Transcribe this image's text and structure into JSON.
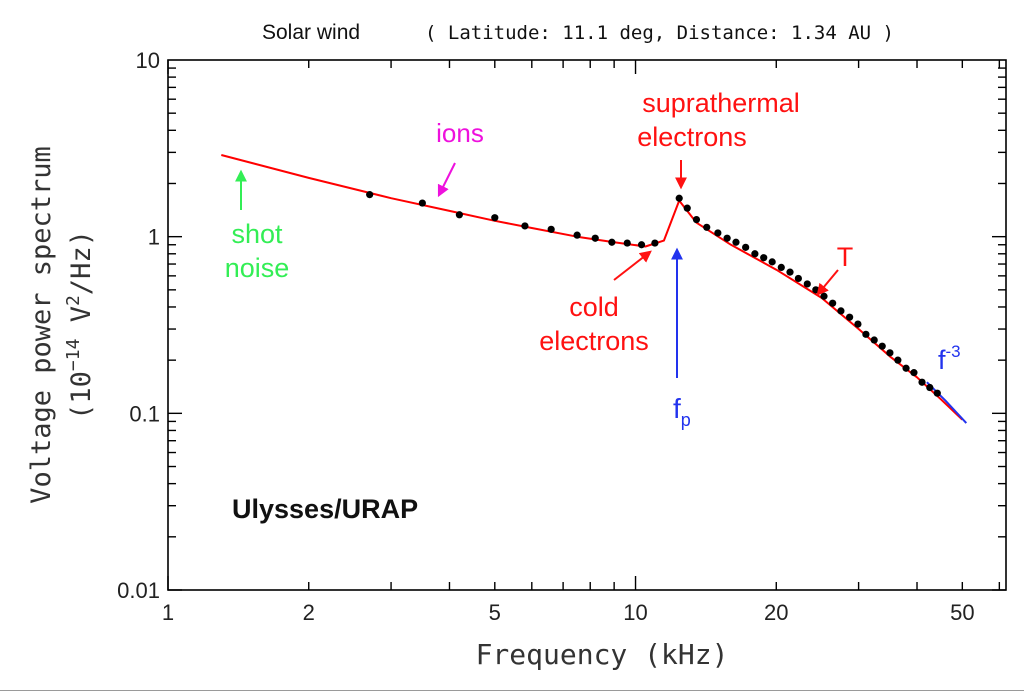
{
  "chart_data": {
    "type": "line",
    "title": "Solar wind",
    "subtitle": "( Latitude: 11.1 deg, Distance: 1.34 AU )",
    "xlabel": "Frequency (kHz)",
    "ylabel_line1": "Voltage power spectrum",
    "ylabel_line2_pre": "(10",
    "ylabel_line2_exp1": "−14",
    "ylabel_line2_mid": " V",
    "ylabel_line2_exp2": "2",
    "ylabel_line2_post": "/Hz)",
    "x_scale": "log",
    "y_scale": "log",
    "xlim": [
      1,
      62
    ],
    "ylim": [
      0.01,
      10
    ],
    "x_ticks": [
      {
        "value": 1,
        "label": "1"
      },
      {
        "value": 2,
        "label": "2"
      },
      {
        "value": 5,
        "label": "5"
      },
      {
        "value": 10,
        "label": "10"
      },
      {
        "value": 20,
        "label": "20"
      },
      {
        "value": 50,
        "label": "50"
      }
    ],
    "y_ticks": [
      {
        "value": 0.01,
        "label": "0.01"
      },
      {
        "value": 0.1,
        "label": "0.1"
      },
      {
        "value": 1,
        "label": "1"
      },
      {
        "value": 10,
        "label": "10"
      }
    ],
    "series": [
      {
        "role": "model-fit",
        "color": "#ff0000",
        "points": [
          [
            1.3,
            2.9
          ],
          [
            2.0,
            2.15
          ],
          [
            3.0,
            1.65
          ],
          [
            4.0,
            1.4
          ],
          [
            5.0,
            1.23
          ],
          [
            6.0,
            1.12
          ],
          [
            7.5,
            1.0
          ],
          [
            9.0,
            0.93
          ],
          [
            10.5,
            0.88
          ],
          [
            11.5,
            0.95
          ],
          [
            12.4,
            1.6
          ],
          [
            13.5,
            1.2
          ],
          [
            16.0,
            0.9
          ],
          [
            20.0,
            0.65
          ],
          [
            25.0,
            0.45
          ],
          [
            30.0,
            0.3
          ],
          [
            35.0,
            0.21
          ],
          [
            40.0,
            0.16
          ],
          [
            45.0,
            0.12
          ],
          [
            50.0,
            0.092
          ]
        ]
      },
      {
        "role": "measured",
        "color": "#000000",
        "points": [
          [
            2.7,
            1.73
          ],
          [
            3.5,
            1.55
          ],
          [
            4.2,
            1.33
          ],
          [
            5.0,
            1.28
          ],
          [
            5.8,
            1.15
          ],
          [
            6.6,
            1.1
          ],
          [
            7.5,
            1.02
          ],
          [
            8.2,
            0.98
          ],
          [
            8.9,
            0.93
          ],
          [
            9.6,
            0.92
          ],
          [
            10.3,
            0.9
          ],
          [
            11.0,
            0.92
          ],
          [
            12.4,
            1.65
          ],
          [
            12.9,
            1.45
          ],
          [
            13.5,
            1.25
          ],
          [
            14.2,
            1.13
          ],
          [
            15.0,
            1.05
          ],
          [
            15.7,
            0.98
          ],
          [
            16.4,
            0.93
          ],
          [
            17.2,
            0.87
          ],
          [
            18.0,
            0.8
          ],
          [
            18.8,
            0.76
          ],
          [
            19.6,
            0.72
          ],
          [
            20.5,
            0.67
          ],
          [
            21.4,
            0.63
          ],
          [
            22.3,
            0.58
          ],
          [
            23.3,
            0.54
          ],
          [
            24.3,
            0.5
          ],
          [
            25.3,
            0.46
          ],
          [
            26.4,
            0.42
          ],
          [
            27.5,
            0.38
          ],
          [
            28.7,
            0.35
          ],
          [
            29.9,
            0.32
          ],
          [
            31.1,
            0.28
          ],
          [
            32.4,
            0.26
          ],
          [
            33.7,
            0.24
          ],
          [
            35.0,
            0.22
          ],
          [
            36.4,
            0.2
          ],
          [
            37.9,
            0.18
          ],
          [
            39.4,
            0.17
          ],
          [
            41.0,
            0.15
          ],
          [
            42.6,
            0.14
          ],
          [
            44.2,
            0.13
          ]
        ]
      },
      {
        "role": "f^-3 segment",
        "color": "#2233ee",
        "points": [
          [
            42.0,
            0.15
          ],
          [
            46.0,
            0.118
          ],
          [
            51.0,
            0.088
          ]
        ]
      }
    ],
    "annotations": {
      "ions": {
        "label": "ions",
        "color": "#ee11dd"
      },
      "shot_noise": {
        "line1": "shot",
        "line2": "noise",
        "color": "#33ee55"
      },
      "cold_electrons": {
        "line1": "cold",
        "line2": "electrons",
        "color": "#ff1111"
      },
      "suprathermal": {
        "line1": "suprathermal",
        "line2": "electrons",
        "color": "#ff1111"
      },
      "temperature": {
        "label": "T",
        "color": "#ff1111"
      },
      "fp": {
        "base": "f",
        "sub": "p",
        "color": "#2233ee"
      },
      "f3": {
        "base": "f",
        "sup": "-3",
        "color": "#2233ee"
      }
    },
    "instrument_label": "Ulysses/URAP",
    "grid": false,
    "legend": "none"
  }
}
